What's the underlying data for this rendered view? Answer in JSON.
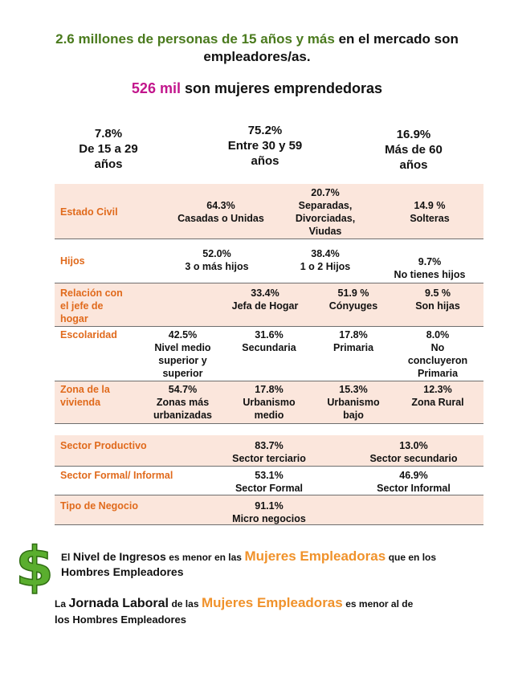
{
  "header": {
    "line1_green": "2.6 millones de personas de 15 años y más",
    "line1_rest": "en el mercado son",
    "line2": "empleadores/as.",
    "women_count": "526 mil",
    "women_text": "son mujeres emprendedoras"
  },
  "age_groups": [
    {
      "pct": "7.8%",
      "label1": "De 15 a 29",
      "label2": "años"
    },
    {
      "pct": "75.2%",
      "label1": "Entre 30 y 59",
      "label2": "años"
    },
    {
      "pct": "16.9%",
      "label1": "Más de 60",
      "label2": "años"
    }
  ],
  "rows": {
    "estado_civil": {
      "label": "Estado Civil",
      "c1": {
        "pct": "64.3%",
        "text": "Casadas o Unidas"
      },
      "c2": {
        "pct": "20.7%",
        "l1": "Separadas,",
        "l2": "Divorciadas,",
        "l3": "Viudas"
      },
      "c3": {
        "pct": "14.9 %",
        "text": "Solteras"
      }
    },
    "hijos": {
      "label": "Hijos",
      "c1": {
        "pct": "52.0%",
        "text": "3 o más hijos"
      },
      "c2": {
        "pct": "38.4%",
        "text": "1 o 2 Hijos"
      },
      "c3": {
        "pct": "9.7%",
        "text": "No tienes hijos"
      }
    },
    "relacion": {
      "label1": "Relación con",
      "label2": "el jefe de",
      "label3": "hogar",
      "c1": {
        "pct": "33.4%",
        "text": "Jefa de Hogar"
      },
      "c2": {
        "pct": "51.9 %",
        "text": "Cónyuges"
      },
      "c3": {
        "pct": "9.5 %",
        "text": "Son hijas"
      }
    },
    "escolaridad": {
      "label": "Escolaridad",
      "c1": {
        "pct": "42.5%",
        "l1": "Nivel medio",
        "l2": "superior y",
        "l3": "superior"
      },
      "c2": {
        "pct": "31.6%",
        "text": "Secundaria"
      },
      "c3": {
        "pct": "17.8%",
        "text": "Primaria"
      },
      "c4": {
        "pct": "8.0%",
        "l1": "No",
        "l2": "concluyeron",
        "l3": "Primaria"
      }
    },
    "zona": {
      "label1": "Zona de la",
      "label2": "vivienda",
      "c1": {
        "pct": "54.7%",
        "l1": "Zonas más",
        "l2": "urbanizadas"
      },
      "c2": {
        "pct": "17.8%",
        "l1": "Urbanismo",
        "l2": "medio"
      },
      "c3": {
        "pct": "15.3%",
        "l1": "Urbanismo",
        "l2": "bajo"
      },
      "c4": {
        "pct": "12.3%",
        "text": "Zona Rural"
      }
    },
    "sector_productivo": {
      "label": "Sector Productivo",
      "c1": {
        "pct": "83.7%",
        "text": "Sector terciario"
      },
      "c2": {
        "pct": "13.0%",
        "text": "Sector secundario"
      }
    },
    "sector_formal": {
      "label": "Sector Formal/ Informal",
      "c1": {
        "pct": "53.1%",
        "text": "Sector Formal"
      },
      "c2": {
        "pct": "46.9%",
        "text": "Sector Informal"
      }
    },
    "tipo_negocio": {
      "label": "Tipo de Negocio",
      "c1": {
        "pct": "91.1%",
        "text": "Micro negocios"
      }
    }
  },
  "notes": {
    "income": {
      "a": "El",
      "b": "Nivel de Ingresos",
      "c": "es menor en las",
      "d": "Mujeres Empleadoras",
      "e": "que en los",
      "f": "Hombres Empleadores"
    },
    "hours": {
      "a": "La",
      "b": "Jornada Laboral",
      "c": "de las",
      "d": "Mujeres Empleadoras",
      "e": "es menor al de",
      "f": "los Hombres Empleadores"
    }
  },
  "icons": {
    "dollar": "dollar-sign-icon",
    "dollar_color": "#5aae2e"
  },
  "colors": {
    "green": "#4a7a1d",
    "magenta": "#c2168c",
    "orange_label": "#e06a1c",
    "orange_highlight": "#f0922b",
    "band": "#fbe6dc"
  }
}
